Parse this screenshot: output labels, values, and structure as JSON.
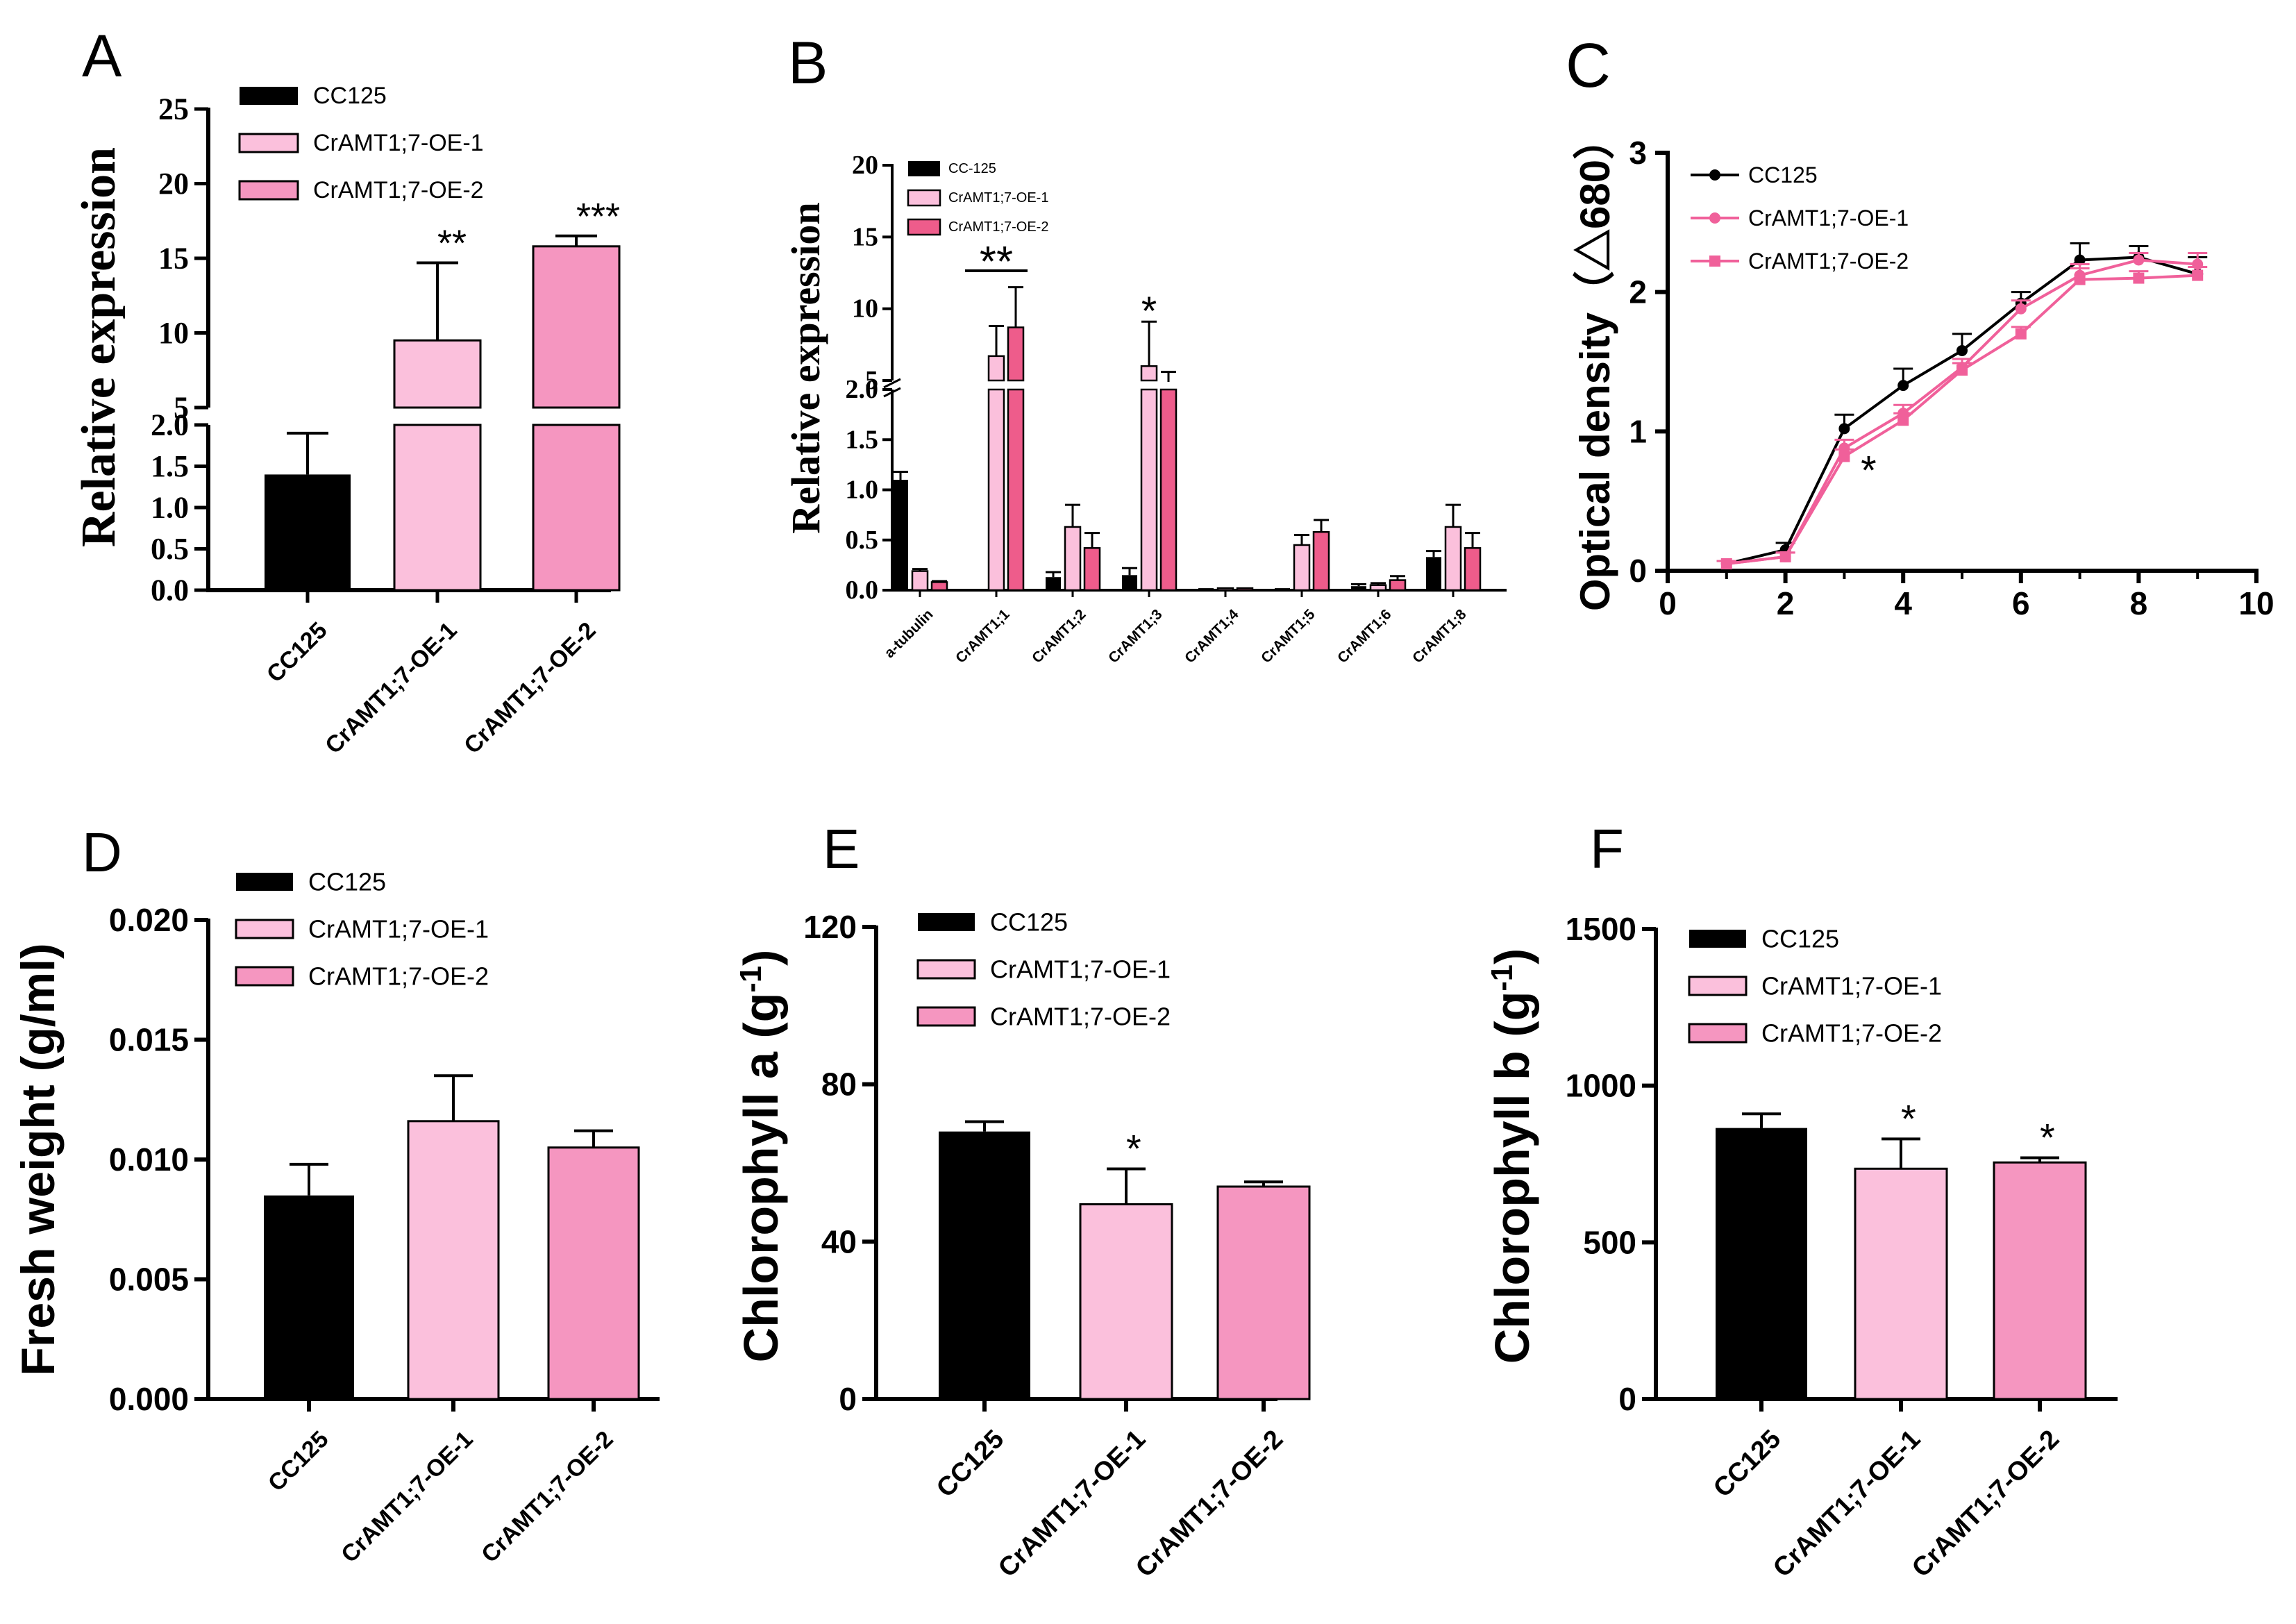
{
  "colors": {
    "cc125": "#000000",
    "oe1": "#fbc0dc",
    "oe2": "#f596c0",
    "b_oe2": "#ee5c8b",
    "c_oe": "#f0609a"
  },
  "chart_data": [
    {
      "id": "A",
      "panel_label": "A",
      "type": "bar",
      "ylabel": "Relative expression",
      "y_break": {
        "lower": [
          0,
          2
        ],
        "upper": [
          5,
          25
        ]
      },
      "yticks_lower": [
        "0.0",
        "0.5",
        "1.0",
        "1.5",
        "2.0"
      ],
      "yticks_upper": [
        "5",
        "10",
        "15",
        "20",
        "25"
      ],
      "categories": [
        "CC125",
        "CrAMT1;7-OE-1",
        "CrAMT1;7-OE-2"
      ],
      "values": [
        1.4,
        9.5,
        15.8
      ],
      "errors": [
        0.5,
        5.2,
        0.7
      ],
      "significance": [
        "",
        "**",
        "***"
      ],
      "legend": [
        "CC125",
        "CrAMT1;7-OE-1",
        "CrAMT1;7-OE-2"
      ]
    },
    {
      "id": "B",
      "panel_label": "B",
      "type": "bar",
      "ylabel": "Relative expression",
      "y_break": {
        "lower": [
          0,
          2
        ],
        "upper": [
          5,
          20
        ]
      },
      "yticks_lower": [
        "0.0",
        "0.5",
        "1.0",
        "1.5",
        "2.0"
      ],
      "yticks_upper": [
        "5",
        "10",
        "15",
        "20"
      ],
      "categories": [
        "a-tubulin",
        "CrAMT1;1",
        "CrAMT1;2",
        "CrAMT1;3",
        "CrAMT1;4",
        "CrAMT1;5",
        "CrAMT1;6",
        "CrAMT1;8"
      ],
      "series": [
        {
          "name": "CC-125",
          "values": [
            1.1,
            0.01,
            0.13,
            0.15,
            0.02,
            0.02,
            0.04,
            0.33
          ],
          "errors": [
            0.08,
            0.0,
            0.05,
            0.07,
            0.0,
            0.0,
            0.02,
            0.06
          ]
        },
        {
          "name": "CrAMT1;7-OE-1",
          "values": [
            0.19,
            6.7,
            0.63,
            6.0,
            0.02,
            0.45,
            0.05,
            0.63
          ],
          "errors": [
            0.02,
            2.1,
            0.22,
            3.1,
            0.0,
            0.1,
            0.02,
            0.22
          ]
        },
        {
          "name": "CrAMT1;7-OE-2",
          "values": [
            0.08,
            8.7,
            0.42,
            4.9,
            0.02,
            0.58,
            0.1,
            0.42
          ],
          "errors": [
            0.01,
            2.8,
            0.15,
            0.7,
            0.0,
            0.12,
            0.04,
            0.15
          ]
        }
      ],
      "significance": [
        {
          "category": 1,
          "label": "**"
        },
        {
          "category": 3,
          "label": "*"
        }
      ],
      "legend": [
        "CC-125",
        "CrAMT1;7-OE-1",
        "CrAMT1;7-OE-2"
      ]
    },
    {
      "id": "C",
      "panel_label": "C",
      "type": "line",
      "ylabel": "Optical density（△680）",
      "xlim": [
        0,
        10
      ],
      "ylim": [
        0,
        3
      ],
      "xticks": [
        "0",
        "2",
        "4",
        "6",
        "8",
        "10"
      ],
      "yticks": [
        "0",
        "1",
        "2",
        "3"
      ],
      "x": [
        1,
        2,
        3,
        4,
        5,
        6,
        7,
        8,
        9
      ],
      "series": [
        {
          "name": "CC125",
          "values": [
            0.05,
            0.15,
            1.02,
            1.33,
            1.58,
            1.92,
            2.23,
            2.25,
            2.13
          ],
          "errors": [
            0.02,
            0.05,
            0.1,
            0.12,
            0.12,
            0.08,
            0.12,
            0.08,
            0.12
          ]
        },
        {
          "name": "CrAMT1;7-OE-1",
          "values": [
            0.05,
            0.1,
            0.88,
            1.13,
            1.46,
            1.88,
            2.12,
            2.23,
            2.2
          ],
          "errors": [
            0.02,
            0.03,
            0.06,
            0.06,
            0.06,
            0.06,
            0.08,
            0.05,
            0.08
          ]
        },
        {
          "name": "CrAMT1;7-OE-2",
          "values": [
            0.05,
            0.1,
            0.82,
            1.08,
            1.44,
            1.7,
            2.09,
            2.1,
            2.12
          ],
          "errors": [
            0.02,
            0.03,
            0.05,
            0.05,
            0.05,
            0.05,
            0.08,
            0.05,
            0.06
          ]
        }
      ],
      "significance": [
        {
          "x": 3,
          "label": "*"
        }
      ],
      "legend": [
        "CC125",
        "CrAMT1;7-OE-1",
        "CrAMT1;7-OE-2"
      ]
    },
    {
      "id": "D",
      "panel_label": "D",
      "type": "bar",
      "ylabel": "Fresh weight (g/ml)",
      "ylim": [
        0,
        0.02
      ],
      "yticks": [
        "0.000",
        "0.005",
        "0.010",
        "0.015",
        "0.020"
      ],
      "categories": [
        "CC125",
        "CrAMT1;7-OE-1",
        "CrAMT1;7-OE-2"
      ],
      "values": [
        0.0085,
        0.0116,
        0.0105
      ],
      "errors": [
        0.0013,
        0.0019,
        0.0007
      ],
      "significance": [
        "",
        "",
        ""
      ],
      "legend": [
        "CC125",
        "CrAMT1;7-OE-1",
        "CrAMT1;7-OE-2"
      ]
    },
    {
      "id": "E",
      "panel_label": "E",
      "type": "bar",
      "ylabel": "Chlorophyll a (g",
      "ylabel_sup": "-1",
      "ylabel_end": ")",
      "ylim": [
        0,
        120
      ],
      "yticks": [
        "0",
        "40",
        "80",
        "120"
      ],
      "categories": [
        "CC125",
        "CrAMT1;7-OE-1",
        "CrAMT1;7-OE-2"
      ],
      "values": [
        68,
        49.5,
        54
      ],
      "errors": [
        2.5,
        9,
        1.2
      ],
      "significance": [
        "",
        "*",
        ""
      ],
      "legend": [
        "CC125",
        "CrAMT1;7-OE-1",
        "CrAMT1;7-OE-2"
      ]
    },
    {
      "id": "F",
      "panel_label": "F",
      "type": "bar",
      "ylabel": "Chlorophyll b (g",
      "ylabel_sup": "-1",
      "ylabel_end": ")",
      "ylim": [
        0,
        1500
      ],
      "yticks": [
        "0",
        "500",
        "1000",
        "1500"
      ],
      "categories": [
        "CC125",
        "CrAMT1;7-OE-1",
        "CrAMT1;7-OE-2"
      ],
      "values": [
        865,
        735,
        755
      ],
      "errors": [
        45,
        95,
        15
      ],
      "significance": [
        "",
        "*",
        "*"
      ],
      "legend": [
        "CC125",
        "CrAMT1;7-OE-1",
        "CrAMT1;7-OE-2"
      ]
    }
  ]
}
